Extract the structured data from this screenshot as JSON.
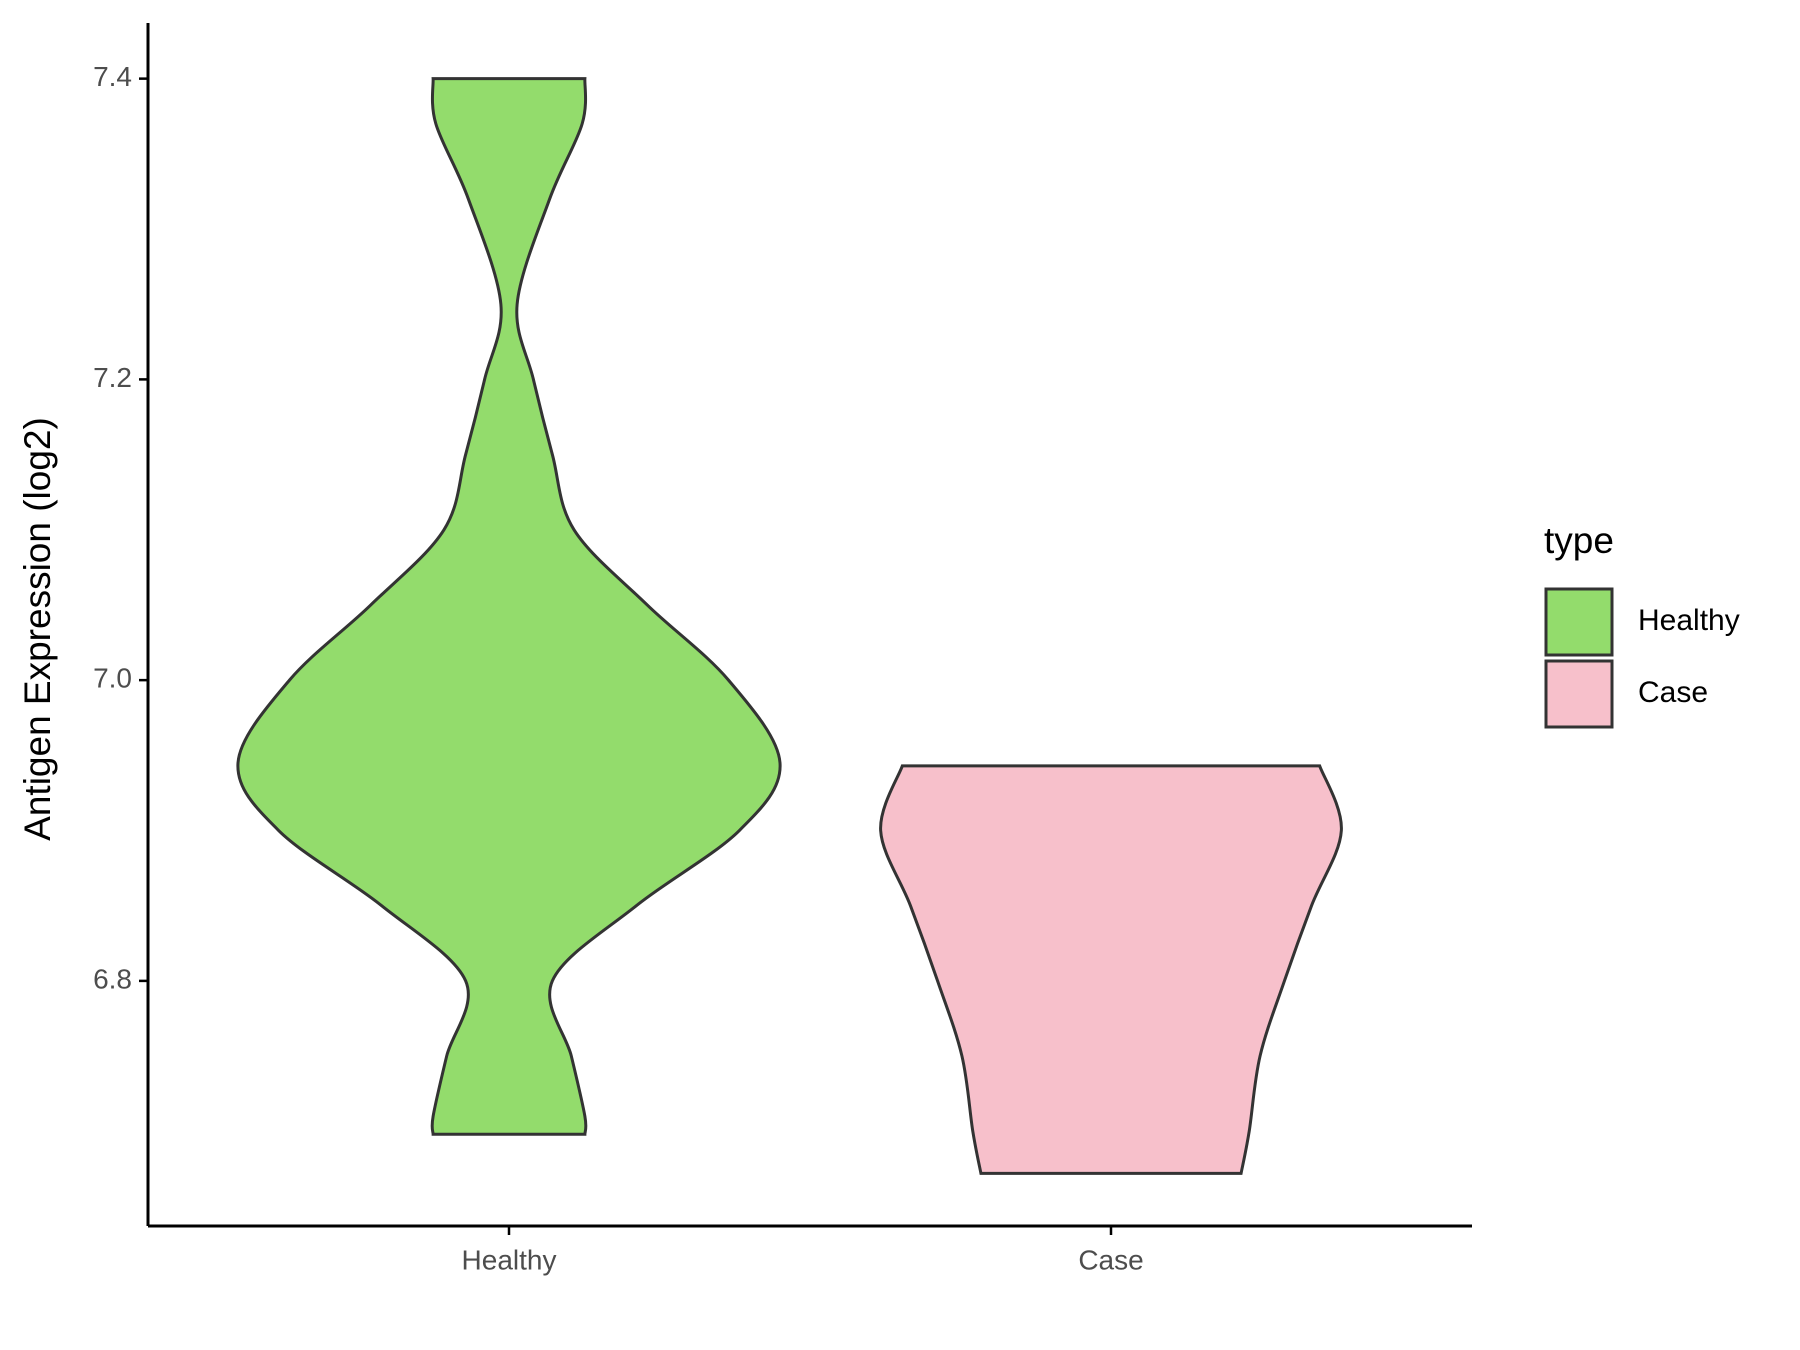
{
  "chart_data": {
    "type": "violin",
    "y_label": "Antigen Expression (log2)",
    "categories": [
      "Healthy",
      "Case"
    ],
    "ylim": [
      6.637,
      7.437
    ],
    "yticks": [
      {
        "value": 6.8,
        "label": "6.8"
      },
      {
        "value": 7.0,
        "label": "7.0"
      },
      {
        "value": 7.2,
        "label": "7.2"
      },
      {
        "value": 7.4,
        "label": "7.4"
      }
    ],
    "legend_title": "type",
    "legend_position": "right",
    "series": [
      {
        "name": "Healthy",
        "color": "#93dc6c",
        "y": [
          7.4,
          7.37,
          7.32,
          7.25,
          7.2,
          7.15,
          7.1,
          7.05,
          7.0,
          6.945,
          6.9,
          6.85,
          6.8,
          6.75,
          6.71,
          6.698
        ],
        "density": [
          0.28,
          0.27,
          0.15,
          0.03,
          0.09,
          0.16,
          0.24,
          0.51,
          0.81,
          1.0,
          0.85,
          0.47,
          0.16,
          0.23,
          0.28,
          0.28
        ]
      },
      {
        "name": "Case",
        "color": "#f7c0cb",
        "y": [
          6.943,
          6.9,
          6.85,
          6.8,
          6.75,
          6.7,
          6.672
        ],
        "density": [
          0.77,
          0.85,
          0.74,
          0.64,
          0.55,
          0.51,
          0.48
        ]
      }
    ]
  }
}
